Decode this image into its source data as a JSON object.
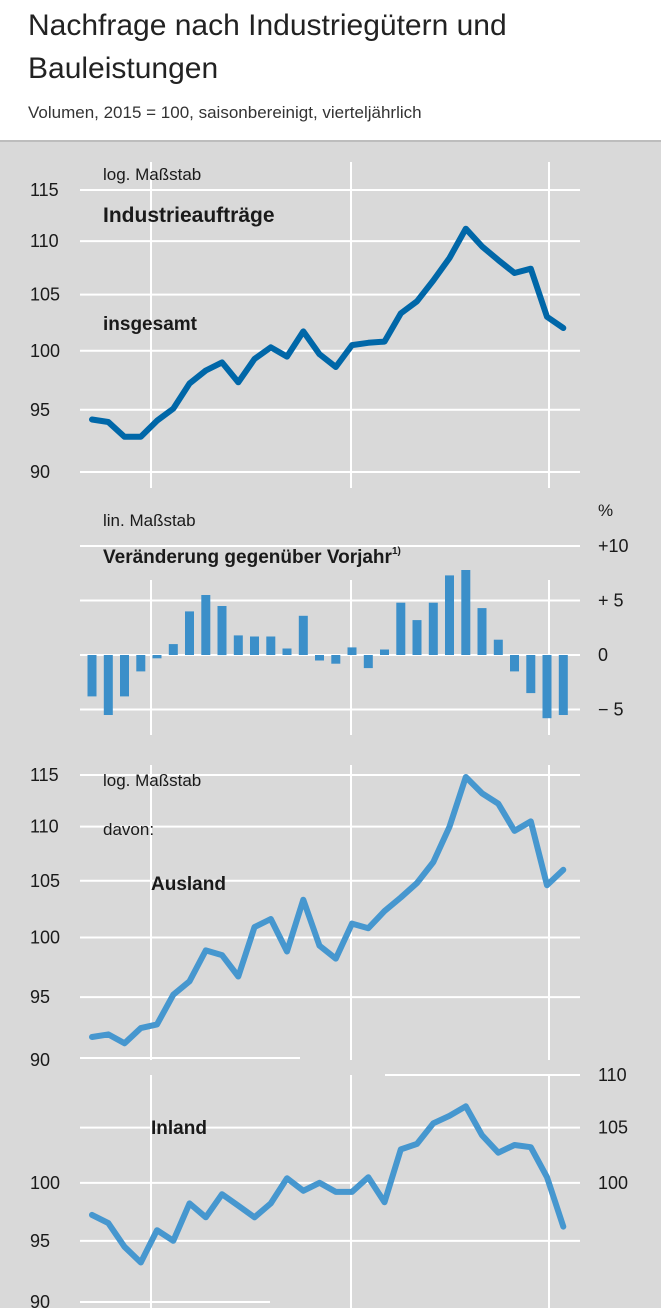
{
  "header": {
    "title": "Nachfrage nach Industriegütern und Bauleistungen",
    "subtitle": "Volumen, 2015 = 100, saisonbereinigt, vierteljährlich"
  },
  "colors": {
    "line_dark": "#0067a8",
    "line_light": "#4697cf",
    "bar": "#3b8fc9",
    "grid": "#ffffff",
    "panel": "#d9d9d9"
  },
  "chart_data": [
    {
      "type": "line",
      "scale_note": "log. Maßstab",
      "title": "Industrieaufträge",
      "series": [
        {
          "name": "insgesamt",
          "values": [
            94.2,
            94.0,
            92.8,
            92.8,
            94.1,
            95.1,
            97.2,
            98.3,
            99.0,
            97.3,
            99.3,
            100.3,
            99.5,
            101.7,
            99.7,
            98.6,
            100.5,
            100.7,
            100.8,
            103.3,
            104.4,
            106.3,
            108.4,
            111.2,
            109.5,
            108.2,
            107.0,
            107.4,
            103.0,
            102.0
          ]
        }
      ],
      "y_ticks": [
        "115",
        "110",
        "105",
        "100",
        "95",
        "90"
      ],
      "scale": "log",
      "ylim": [
        90,
        115
      ]
    },
    {
      "type": "bar",
      "scale_note": "lin. Maßstab",
      "title": "Veränderung gegenüber Vorjahr",
      "footnote_mark": "1)",
      "unit": "%",
      "values": [
        -3.8,
        -5.5,
        -3.8,
        -1.5,
        -0.3,
        1.0,
        4.0,
        5.5,
        4.5,
        1.8,
        1.7,
        1.7,
        0.6,
        3.6,
        -0.5,
        -0.8,
        0.7,
        -1.2,
        0.5,
        4.8,
        3.2,
        4.8,
        7.3,
        7.8,
        4.3,
        1.4,
        -1.5,
        -3.5,
        -5.8,
        -5.5
      ],
      "y_ticks": [
        "+10",
        "+ 5",
        "0",
        "− 5"
      ],
      "ylim": [
        -6,
        10
      ]
    },
    {
      "type": "line",
      "scale_note": "log. Maßstab",
      "label": "davon:",
      "series": [
        {
          "name": "Ausland",
          "values": [
            91.8,
            92.0,
            91.3,
            92.5,
            92.8,
            95.2,
            96.3,
            98.9,
            98.5,
            96.7,
            100.9,
            101.6,
            98.8,
            103.3,
            99.3,
            98.2,
            101.2,
            100.8,
            102.3,
            103.5,
            104.8,
            106.7,
            110.0,
            114.8,
            113.2,
            112.2,
            109.6,
            110.5,
            104.6,
            106.0
          ]
        }
      ],
      "y_ticks": [
        "115",
        "110",
        "105",
        "100",
        "95",
        "90"
      ],
      "scale": "log",
      "ylim": [
        90,
        115
      ]
    },
    {
      "type": "line",
      "scale_note": "log. Maßstab",
      "series": [
        {
          "name": "Inland",
          "values": [
            97.2,
            96.5,
            94.5,
            93.2,
            95.9,
            95.0,
            98.2,
            97.0,
            99.0,
            98.0,
            97.0,
            98.2,
            100.4,
            99.3,
            100.0,
            99.2,
            99.2,
            100.5,
            98.3,
            103.0,
            103.5,
            105.4,
            106.1,
            107.0,
            104.3,
            102.7,
            103.4,
            103.2,
            100.5,
            96.2
          ]
        }
      ],
      "y_ticks_left": [
        "100",
        "95",
        "90"
      ],
      "y_ticks_right": [
        "110",
        "105",
        "100"
      ],
      "scale": "log",
      "ylim": [
        90,
        112
      ]
    }
  ]
}
